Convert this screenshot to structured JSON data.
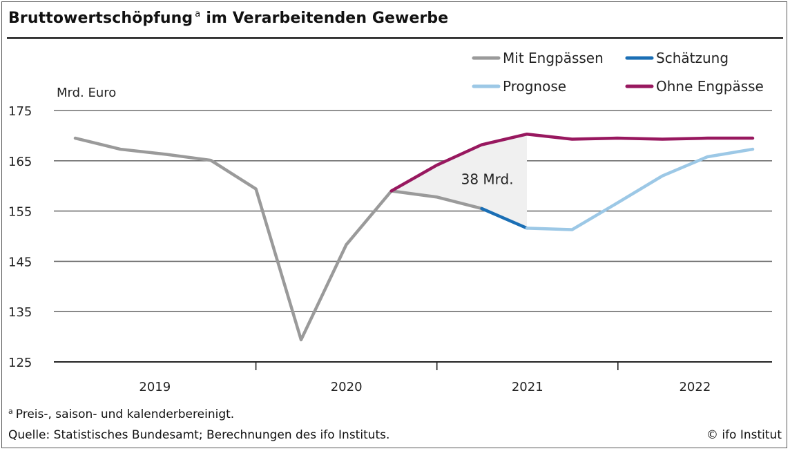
{
  "title": {
    "text": "Bruttowertschöpfung",
    "footnote_marker": "a",
    "text2": "im Verarbeitenden Gewerbe"
  },
  "footnote": {
    "marker": "a",
    "text": "Preis-, saison- und kalenderbereinigt."
  },
  "source": "Quelle: Statistisches Bundesamt; Berechnungen des ifo Instituts.",
  "copyright": "© ifo Institut",
  "chart_data": {
    "type": "line",
    "title": "Bruttowertschöpfung im Verarbeitenden Gewerbe",
    "ylabel": "Mrd. Euro",
    "xlabel": "",
    "ylim": [
      125,
      175
    ],
    "yticks": [
      125,
      135,
      145,
      155,
      165,
      175
    ],
    "year_labels": [
      "2019",
      "2020",
      "2021",
      "2022"
    ],
    "x": [
      "2018Q4",
      "2019Q1",
      "2019Q2",
      "2019Q3",
      "2019Q4",
      "2020Q1",
      "2020Q2",
      "2020Q3",
      "2020Q4",
      "2021Q1",
      "2021Q2",
      "2021Q3",
      "2021Q4",
      "2022Q1",
      "2022Q2",
      "2022Q3",
      "2022Q4"
    ],
    "grid": true,
    "legend_position": "top-right",
    "series": [
      {
        "name": "Mit Engpässen",
        "color": "#9a9a9a",
        "points": [
          [
            "2018Q4",
            169.5
          ],
          [
            "2019Q1",
            167.3
          ],
          [
            "2019Q2",
            166.3
          ],
          [
            "2019Q3",
            165.1
          ],
          [
            "2019Q4",
            159.4
          ],
          [
            "2020Q1",
            129.4
          ],
          [
            "2020Q2",
            148.3
          ],
          [
            "2020Q3",
            159.0
          ],
          [
            "2020Q4",
            157.8
          ],
          [
            "2021Q1",
            155.5
          ]
        ]
      },
      {
        "name": "Schätzung",
        "color": "#1b6fb5",
        "points": [
          [
            "2021Q1",
            155.5
          ],
          [
            "2021Q2",
            151.6
          ]
        ]
      },
      {
        "name": "Prognose",
        "color": "#9cc8e6",
        "points": [
          [
            "2021Q2",
            151.6
          ],
          [
            "2021Q3",
            151.3
          ],
          [
            "2021Q4",
            156.6
          ],
          [
            "2022Q1",
            162.0
          ],
          [
            "2022Q2",
            165.8
          ],
          [
            "2022Q3",
            167.3
          ]
        ]
      },
      {
        "name": "Ohne Engpässe",
        "color": "#98185f",
        "points": [
          [
            "2020Q3",
            159.0
          ],
          [
            "2020Q4",
            164.1
          ],
          [
            "2021Q1",
            168.2
          ],
          [
            "2021Q2",
            170.3
          ],
          [
            "2021Q3",
            169.3
          ],
          [
            "2021Q4",
            169.5
          ],
          [
            "2022Q1",
            169.3
          ],
          [
            "2022Q2",
            169.5
          ],
          [
            "2022Q3",
            169.5
          ]
        ]
      }
    ],
    "annotations": [
      {
        "text": "38 Mrd.",
        "x": "2021Q1",
        "y": 161.5
      }
    ],
    "shaded_gap": {
      "from": "2020Q3",
      "to": "2021Q2",
      "color": "#f0f0f0"
    }
  }
}
